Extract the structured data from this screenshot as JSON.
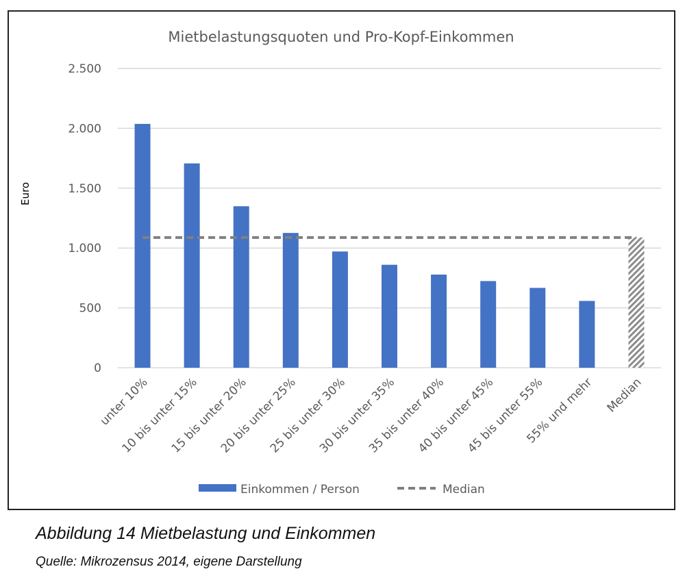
{
  "chart_data": {
    "type": "bar",
    "title": "Mietbelastungsquoten und Pro-Kopf-Einkommen",
    "xlabel": "",
    "ylabel": "Euro",
    "ylim": [
      0,
      2500
    ],
    "yticks": [
      0,
      500,
      1000,
      1500,
      2000,
      2500
    ],
    "ytick_labels": [
      "0",
      "500",
      "1.000",
      "1.500",
      "2.000",
      "2.500"
    ],
    "grid": true,
    "categories": [
      "unter 10%",
      "10 bis unter 15%",
      "15 bis unter 20%",
      "20 bis unter 25%",
      "25 bis unter 30%",
      "30 bis unter 35%",
      "35 bis unter 40%",
      "40 bis unter 45%",
      "45 bis unter 55%",
      "55% und mehr",
      "Median"
    ],
    "series": [
      {
        "name": "Einkommen / Person",
        "type": "bar",
        "color": "#4472C4",
        "values": [
          2037,
          1707,
          1349,
          1126,
          971,
          860,
          778,
          724,
          667,
          558,
          null
        ]
      },
      {
        "name": "Median",
        "type": "line-dashed",
        "color": "#808080",
        "values": [
          1088,
          1088,
          1088,
          1088,
          1088,
          1088,
          1088,
          1088,
          1088,
          1088,
          1088
        ]
      }
    ],
    "median_bar": {
      "category": "Median",
      "value": 1088,
      "pattern": "hatched-grey"
    },
    "legend_placement": "bottom"
  },
  "caption": {
    "title": "Abbildung 14 Mietbelastung und Einkommen",
    "source": "Quelle: Mikrozensus 2014, eigene Darstellung"
  }
}
